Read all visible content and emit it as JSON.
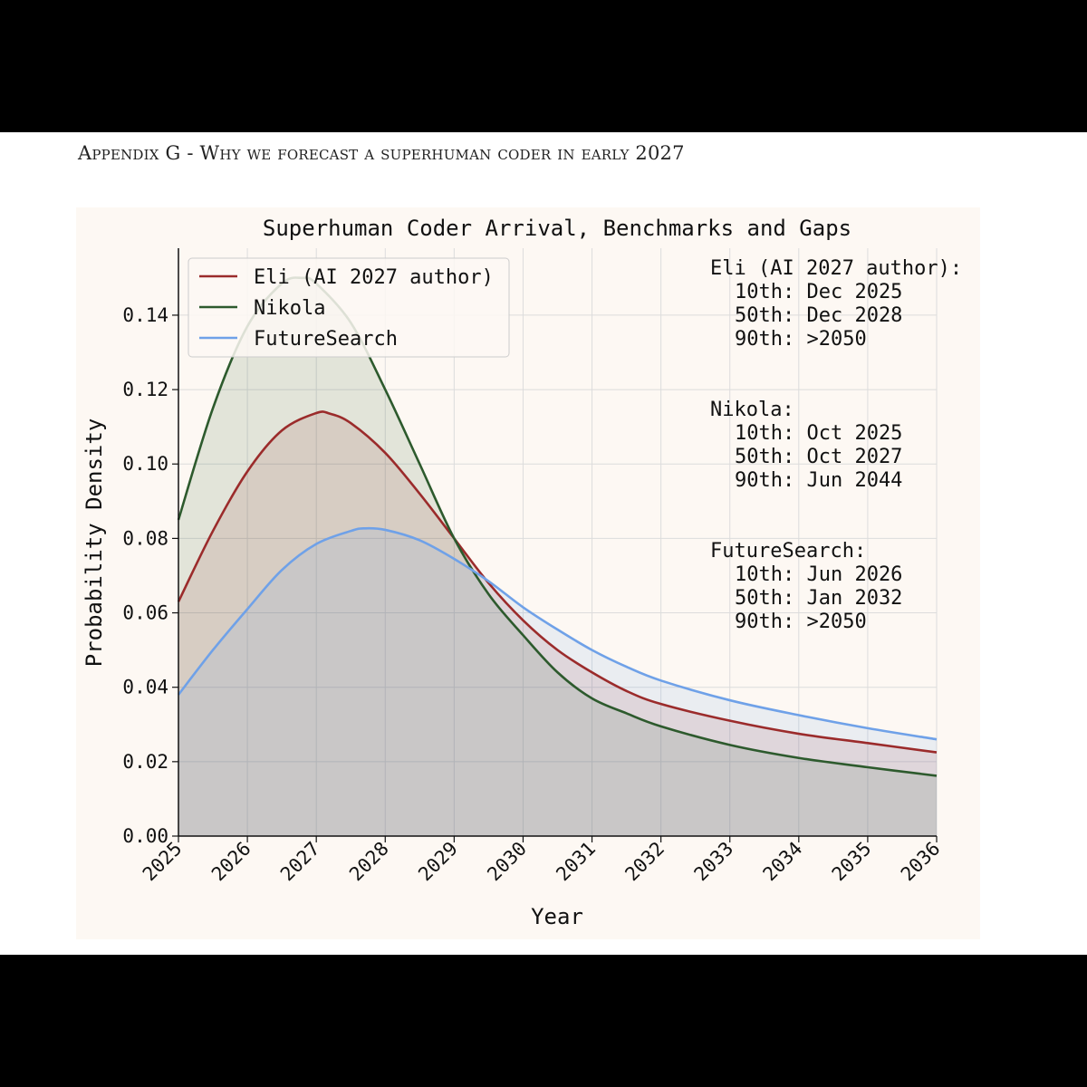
{
  "header": {
    "title": "Appendix G - Why we forecast a superhuman coder in early 2027"
  },
  "colors": {
    "eli": "#9b2b2b",
    "nikola": "#2d5a2d",
    "futuresearch": "#6fa1e8",
    "background": "#fdf8f3"
  },
  "chart_data": {
    "type": "area",
    "title": "Superhuman Coder Arrival, Benchmarks and Gaps",
    "xlabel": "Year",
    "ylabel": "Probability Density",
    "xlim": [
      2025,
      2036
    ],
    "ylim": [
      0,
      0.158
    ],
    "xticks": [
      "2025",
      "2026",
      "2027",
      "2028",
      "2029",
      "2030",
      "2031",
      "2032",
      "2033",
      "2034",
      "2035",
      "2036"
    ],
    "yticks": [
      "0.00",
      "0.02",
      "0.04",
      "0.06",
      "0.08",
      "0.10",
      "0.12",
      "0.14"
    ],
    "grid": true,
    "legend_position": "top-left",
    "series": [
      {
        "name": "Eli (AI 2027 author)",
        "color": "#9b2b2b",
        "x": [
          2025,
          2025.5,
          2026,
          2026.5,
          2027,
          2027.2,
          2027.5,
          2028,
          2028.5,
          2029,
          2029.5,
          2030,
          2030.5,
          2031,
          2031.5,
          2032,
          2033,
          2034,
          2035,
          2036
        ],
        "y": [
          0.063,
          0.082,
          0.098,
          0.109,
          0.1137,
          0.1135,
          0.111,
          0.103,
          0.092,
          0.08,
          0.068,
          0.058,
          0.05,
          0.044,
          0.039,
          0.0355,
          0.031,
          0.0275,
          0.025,
          0.0225
        ]
      },
      {
        "name": "Nikola",
        "color": "#2d5a2d",
        "x": [
          2025,
          2025.5,
          2026,
          2026.5,
          2026.8,
          2027,
          2027.5,
          2028,
          2028.5,
          2029,
          2029.5,
          2030,
          2030.5,
          2031,
          2031.5,
          2032,
          2033,
          2034,
          2035,
          2036
        ],
        "y": [
          0.085,
          0.115,
          0.137,
          0.1485,
          0.15,
          0.1485,
          0.138,
          0.12,
          0.1,
          0.08,
          0.065,
          0.054,
          0.044,
          0.037,
          0.033,
          0.0295,
          0.0245,
          0.021,
          0.0185,
          0.0162
        ]
      },
      {
        "name": "FutureSearch",
        "color": "#6fa1e8",
        "x": [
          2025,
          2025.5,
          2026,
          2026.5,
          2027,
          2027.5,
          2027.7,
          2028,
          2028.5,
          2029,
          2029.5,
          2030,
          2030.5,
          2031,
          2031.5,
          2032,
          2033,
          2034,
          2035,
          2036
        ],
        "y": [
          0.038,
          0.05,
          0.061,
          0.0715,
          0.0785,
          0.082,
          0.0827,
          0.0823,
          0.0795,
          0.0745,
          0.0685,
          0.0615,
          0.0555,
          0.05,
          0.0455,
          0.0418,
          0.0365,
          0.0325,
          0.029,
          0.026
        ]
      }
    ]
  },
  "stats": [
    {
      "header": "Eli (AI 2027 author):",
      "lines": [
        "10th: Dec 2025",
        "50th: Dec 2028",
        "90th: >2050"
      ]
    },
    {
      "header": "Nikola:",
      "lines": [
        "10th: Oct 2025",
        "50th: Oct 2027",
        "90th: Jun 2044"
      ]
    },
    {
      "header": "FutureSearch:",
      "lines": [
        "10th: Jun 2026",
        "50th: Jan 2032",
        "90th: >2050"
      ]
    }
  ]
}
